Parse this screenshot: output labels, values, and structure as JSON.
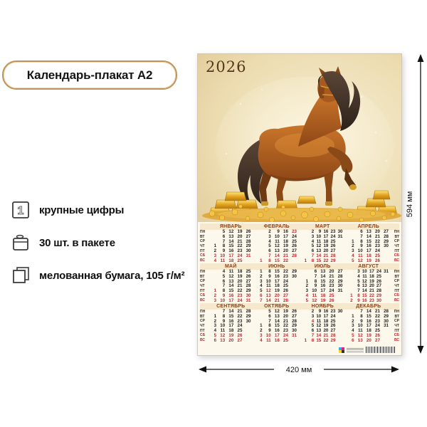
{
  "product_label": "Календарь-плакат А2",
  "features": [
    {
      "icon": "big-digit-icon",
      "label": "крупные цифры"
    },
    {
      "icon": "package-icon",
      "label": "30 шт. в пакете"
    },
    {
      "icon": "paper-sheets-icon",
      "label": "мелованная бумага, 105 г/м²"
    }
  ],
  "dimensions": {
    "width_label": "420 мм",
    "height_label": "594 мм"
  },
  "poster": {
    "year": "2026",
    "artwork_description": "chestnut horse standing on scattered gold coins among stacks of gold bars",
    "day_labels": [
      "ПН",
      "ВТ",
      "СР",
      "ЧТ",
      "ПТ",
      "СБ",
      "ВС"
    ],
    "colors": {
      "weekday_number": "#1c1c1c",
      "weekend_number": "#c2232e",
      "month_header": "#9c3b10",
      "badge_border_gold": "#c09357",
      "poster_tan": "#e4cf9e"
    },
    "months": [
      {
        "name": "ЯНВАРЬ",
        "holidays": [],
        "rows": [
          [
            null,
            5,
            12,
            19,
            26
          ],
          [
            null,
            6,
            13,
            20,
            27
          ],
          [
            null,
            7,
            14,
            21,
            28
          ],
          [
            1,
            8,
            15,
            22,
            29
          ],
          [
            2,
            9,
            16,
            23,
            30
          ],
          [
            3,
            10,
            17,
            24,
            31
          ],
          [
            4,
            11,
            18,
            25,
            null
          ]
        ]
      },
      {
        "name": "ФЕВРАЛЬ",
        "holidays": [
          23
        ],
        "rows": [
          [
            null,
            2,
            9,
            16,
            23
          ],
          [
            null,
            3,
            10,
            17,
            24
          ],
          [
            null,
            4,
            11,
            18,
            25
          ],
          [
            null,
            5,
            12,
            19,
            26
          ],
          [
            null,
            6,
            13,
            20,
            27
          ],
          [
            null,
            7,
            14,
            21,
            28
          ],
          [
            1,
            8,
            15,
            22,
            null
          ]
        ]
      },
      {
        "name": "МАРТ",
        "holidays": [],
        "rows": [
          [
            null,
            2,
            9,
            16,
            23,
            30
          ],
          [
            null,
            3,
            10,
            17,
            24,
            31
          ],
          [
            null,
            4,
            11,
            18,
            25,
            null
          ],
          [
            null,
            5,
            12,
            19,
            26,
            null
          ],
          [
            null,
            6,
            13,
            20,
            27,
            null
          ],
          [
            null,
            7,
            14,
            21,
            28,
            null
          ],
          [
            1,
            8,
            15,
            22,
            29,
            null
          ]
        ]
      },
      {
        "name": "АПРЕЛЬ",
        "holidays": [],
        "rows": [
          [
            null,
            6,
            13,
            20,
            27
          ],
          [
            null,
            7,
            14,
            21,
            28
          ],
          [
            1,
            8,
            15,
            22,
            29
          ],
          [
            2,
            9,
            16,
            23,
            30
          ],
          [
            3,
            10,
            17,
            24,
            null
          ],
          [
            4,
            11,
            18,
            25,
            null
          ],
          [
            5,
            12,
            19,
            26,
            null
          ]
        ]
      },
      {
        "name": "МАЙ",
        "holidays": [
          1
        ],
        "rows": [
          [
            null,
            4,
            11,
            18,
            25
          ],
          [
            null,
            5,
            12,
            19,
            26
          ],
          [
            null,
            6,
            13,
            20,
            27
          ],
          [
            null,
            7,
            14,
            21,
            28
          ],
          [
            1,
            8,
            15,
            22,
            29
          ],
          [
            2,
            9,
            16,
            23,
            30
          ],
          [
            3,
            10,
            17,
            24,
            31
          ]
        ]
      },
      {
        "name": "ИЮНЬ",
        "holidays": [
          12
        ],
        "rows": [
          [
            1,
            8,
            15,
            22,
            29
          ],
          [
            2,
            9,
            16,
            23,
            30
          ],
          [
            3,
            10,
            17,
            24,
            null
          ],
          [
            4,
            11,
            18,
            25,
            null
          ],
          [
            5,
            12,
            19,
            26,
            null
          ],
          [
            6,
            13,
            20,
            27,
            null
          ],
          [
            7,
            14,
            21,
            28,
            null
          ]
        ]
      },
      {
        "name": "ИЮЛЬ",
        "holidays": [],
        "rows": [
          [
            null,
            6,
            13,
            20,
            27
          ],
          [
            null,
            7,
            14,
            21,
            28
          ],
          [
            1,
            8,
            15,
            22,
            29
          ],
          [
            2,
            9,
            16,
            23,
            30
          ],
          [
            3,
            10,
            17,
            24,
            31
          ],
          [
            4,
            11,
            18,
            25,
            null
          ],
          [
            5,
            12,
            19,
            26,
            null
          ]
        ]
      },
      {
        "name": "АВГУСТ",
        "holidays": [],
        "rows": [
          [
            null,
            3,
            10,
            17,
            24,
            31
          ],
          [
            null,
            4,
            11,
            18,
            25,
            null
          ],
          [
            null,
            5,
            12,
            19,
            26,
            null
          ],
          [
            null,
            6,
            13,
            20,
            27,
            null
          ],
          [
            null,
            7,
            14,
            21,
            28,
            null
          ],
          [
            1,
            8,
            15,
            22,
            29,
            null
          ],
          [
            2,
            9,
            16,
            23,
            30,
            null
          ]
        ]
      },
      {
        "name": "СЕНТЯБРЬ",
        "holidays": [],
        "rows": [
          [
            null,
            7,
            14,
            21,
            28
          ],
          [
            1,
            8,
            15,
            22,
            29
          ],
          [
            2,
            9,
            16,
            23,
            30
          ],
          [
            3,
            10,
            17,
            24,
            null
          ],
          [
            4,
            11,
            18,
            25,
            null
          ],
          [
            5,
            12,
            19,
            26,
            null
          ],
          [
            6,
            13,
            20,
            27,
            null
          ]
        ]
      },
      {
        "name": "ОКТЯБРЬ",
        "holidays": [],
        "rows": [
          [
            null,
            5,
            12,
            19,
            26
          ],
          [
            null,
            6,
            13,
            20,
            27
          ],
          [
            null,
            7,
            14,
            21,
            28
          ],
          [
            1,
            8,
            15,
            22,
            29
          ],
          [
            2,
            9,
            16,
            23,
            30
          ],
          [
            3,
            10,
            17,
            24,
            31
          ],
          [
            4,
            11,
            18,
            25,
            null
          ]
        ]
      },
      {
        "name": "НОЯБРЬ",
        "holidays": [
          4
        ],
        "rows": [
          [
            null,
            2,
            9,
            16,
            23,
            30
          ],
          [
            null,
            3,
            10,
            17,
            24,
            null
          ],
          [
            null,
            4,
            11,
            18,
            25,
            null
          ],
          [
            null,
            5,
            12,
            19,
            26,
            null
          ],
          [
            null,
            6,
            13,
            20,
            27,
            null
          ],
          [
            null,
            7,
            14,
            21,
            28,
            null
          ],
          [
            1,
            8,
            15,
            22,
            29,
            null
          ]
        ]
      },
      {
        "name": "ДЕКАБРЬ",
        "holidays": [],
        "rows": [
          [
            null,
            7,
            14,
            21,
            28
          ],
          [
            1,
            8,
            15,
            22,
            29
          ],
          [
            2,
            9,
            16,
            23,
            30
          ],
          [
            3,
            10,
            17,
            24,
            31
          ],
          [
            4,
            11,
            18,
            25,
            null
          ],
          [
            5,
            12,
            19,
            26,
            null
          ],
          [
            6,
            13,
            20,
            27,
            null
          ]
        ]
      }
    ]
  }
}
